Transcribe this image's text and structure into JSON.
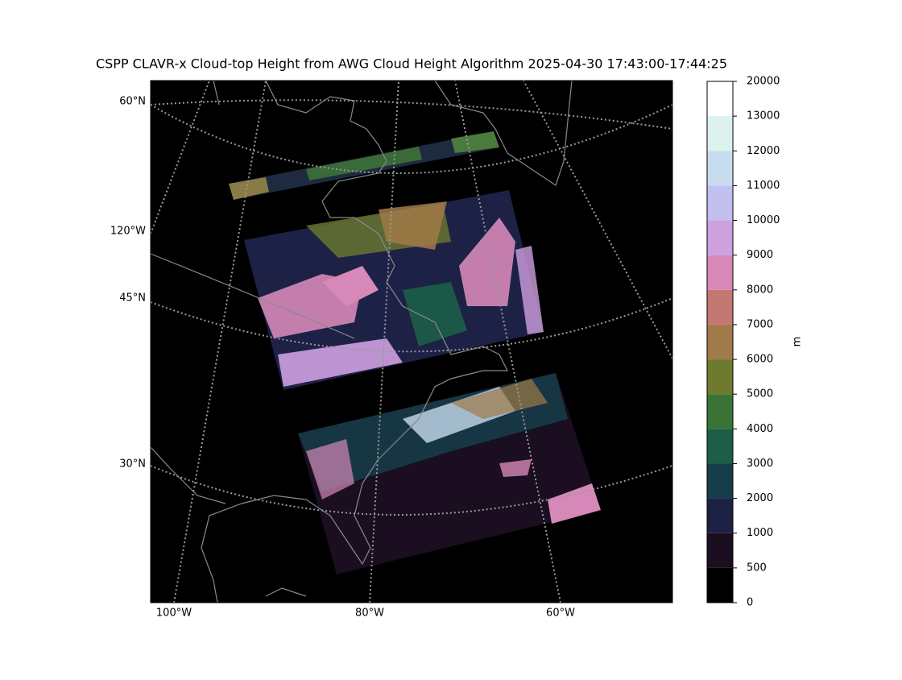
{
  "title": "CSPP CLAVR-x Cloud-top Height from AWG Cloud Height Algorithm 2025-04-30 17:43:00-17:44:25",
  "map": {
    "lat_labels": [
      "60°N",
      "45°N",
      "30°N"
    ],
    "lon_label_left": "120°W",
    "lon_labels_bottom": [
      "100°W",
      "80°W",
      "60°W"
    ]
  },
  "colorbar": {
    "label": "m",
    "levels": [
      0,
      500,
      1000,
      2000,
      3000,
      4000,
      5000,
      6000,
      7000,
      8000,
      9000,
      10000,
      11000,
      12000,
      13000,
      20000
    ],
    "colors": [
      "#000000",
      "#1a0e20",
      "#1d2146",
      "#173d4a",
      "#1c5e48",
      "#3a7336",
      "#6d7a30",
      "#a07a48",
      "#c47874",
      "#d688b8",
      "#cfa0e0",
      "#c2c0f0",
      "#c8dcf0",
      "#dcf2ee",
      "#ffffff"
    ]
  }
}
